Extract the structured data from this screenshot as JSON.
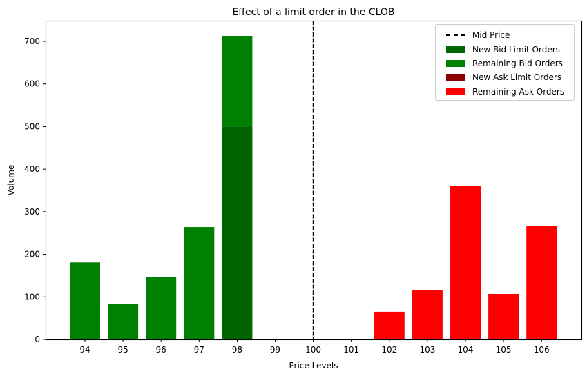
{
  "chart_data": {
    "type": "bar",
    "title": "Effect of a limit order in the CLOB",
    "xlabel": "Price Levels",
    "ylabel": "Volume",
    "ylim": [
      0,
      749
    ],
    "yticks": [
      0,
      100,
      200,
      300,
      400,
      500,
      600,
      700
    ],
    "categories": [
      "94",
      "95",
      "96",
      "97",
      "98",
      "99",
      "100",
      "101",
      "102",
      "103",
      "104",
      "105",
      "106"
    ],
    "series": [
      {
        "name": "New Bid Limit Orders",
        "color": "#006400",
        "values": [
          0,
          0,
          0,
          0,
          500,
          0,
          0,
          0,
          0,
          0,
          0,
          0,
          0
        ]
      },
      {
        "name": "Remaining Bid Orders",
        "color": "#008000",
        "stacked_on": "New Bid Limit Orders",
        "values": [
          181,
          83,
          146,
          264,
          213,
          0,
          0,
          0,
          0,
          0,
          0,
          0,
          0
        ]
      },
      {
        "name": "New Ask Limit Orders",
        "color": "#8b0000",
        "values": [
          0,
          0,
          0,
          0,
          0,
          0,
          0,
          0,
          0,
          0,
          0,
          0,
          0
        ]
      },
      {
        "name": "Remaining Ask Orders",
        "color": "#ff0000",
        "values": [
          0,
          0,
          0,
          0,
          0,
          0,
          0,
          0,
          65,
          115,
          360,
          107,
          266
        ]
      }
    ],
    "vline": {
      "name": "Mid Price",
      "x": "100",
      "style": "dashed",
      "color": "#000000"
    },
    "grid": false,
    "legend_position": "upper right",
    "legend": [
      {
        "label": "Mid Price",
        "kind": "dash",
        "color": "#000000"
      },
      {
        "label": "New Bid Limit Orders",
        "kind": "patch",
        "color": "#006400"
      },
      {
        "label": "Remaining Bid Orders",
        "kind": "patch",
        "color": "#008000"
      },
      {
        "label": "New Ask Limit Orders",
        "kind": "patch",
        "color": "#8b0000"
      },
      {
        "label": "Remaining Ask Orders",
        "kind": "patch",
        "color": "#ff0000"
      }
    ]
  }
}
